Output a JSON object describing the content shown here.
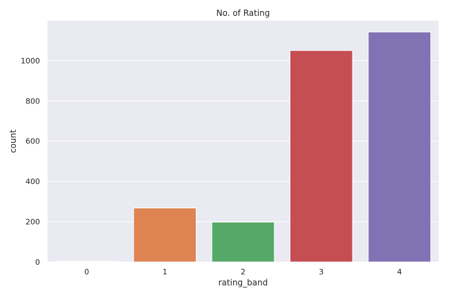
{
  "chart_data": {
    "type": "bar",
    "title": "No. of Rating",
    "xlabel": "rating_band",
    "ylabel": "count",
    "categories": [
      "0",
      "1",
      "2",
      "3",
      "4"
    ],
    "values": [
      3,
      268,
      198,
      1050,
      1142
    ],
    "ylim": [
      0,
      1198
    ],
    "yticks": [
      0,
      200,
      400,
      600,
      800,
      1000
    ],
    "grid": true,
    "legend": "none",
    "colors": [
      "#4c72b0",
      "#dd8452",
      "#55a868",
      "#c44e52",
      "#8172b3"
    ],
    "background": "#eaeaf2",
    "grid_color": "#ffffff"
  }
}
